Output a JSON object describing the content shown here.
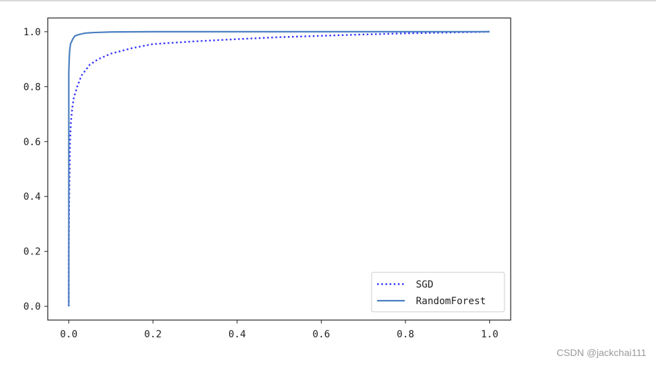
{
  "chart_data": {
    "type": "line",
    "title": "",
    "xlabel": "",
    "ylabel": "",
    "xlim": [
      -0.05,
      1.05
    ],
    "ylim": [
      -0.05,
      1.05
    ],
    "x_ticks": [
      "0.0",
      "0.2",
      "0.4",
      "0.6",
      "0.8",
      "1.0"
    ],
    "y_ticks": [
      "0.0",
      "0.2",
      "0.4",
      "0.6",
      "0.8",
      "1.0"
    ],
    "grid": false,
    "legend_position": "lower-right",
    "series": [
      {
        "name": "SGD",
        "style": "dotted",
        "color": "#3333ff",
        "x": [
          0.0,
          0.0,
          0.001,
          0.002,
          0.003,
          0.005,
          0.008,
          0.012,
          0.02,
          0.03,
          0.04,
          0.05,
          0.07,
          0.1,
          0.15,
          0.2,
          0.3,
          0.4,
          0.5,
          0.6,
          0.7,
          0.8,
          0.9,
          1.0
        ],
        "y": [
          0.0,
          0.2,
          0.4,
          0.5,
          0.6,
          0.67,
          0.72,
          0.76,
          0.8,
          0.84,
          0.86,
          0.88,
          0.9,
          0.92,
          0.94,
          0.955,
          0.965,
          0.973,
          0.98,
          0.985,
          0.99,
          0.994,
          0.997,
          1.0
        ]
      },
      {
        "name": "RandomForest",
        "style": "solid",
        "color": "#4a7fc1",
        "x": [
          0.0,
          0.0,
          0.0,
          0.001,
          0.002,
          0.004,
          0.007,
          0.01,
          0.015,
          0.025,
          0.04,
          0.06,
          0.1,
          0.2,
          0.4,
          0.6,
          0.8,
          1.0
        ],
        "y": [
          0.0,
          0.6,
          0.85,
          0.9,
          0.93,
          0.955,
          0.965,
          0.975,
          0.985,
          0.99,
          0.995,
          0.997,
          0.999,
          1.0,
          1.0,
          1.0,
          1.0,
          1.0
        ]
      }
    ]
  },
  "watermark": "CSDN @jackchai111"
}
